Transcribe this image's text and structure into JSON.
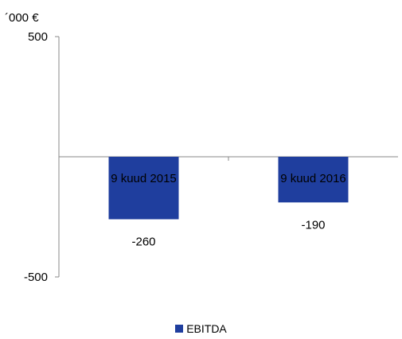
{
  "chart_data": {
    "type": "bar",
    "unit_label": "´000 €",
    "categories": [
      "9 kuud 2015",
      "9 kuud 2016"
    ],
    "series": [
      {
        "name": "EBITDA",
        "values": [
          -260,
          -190
        ],
        "color": "#1F3E9E"
      }
    ],
    "ylim": [
      -500,
      500
    ],
    "yticks": [
      500,
      -500
    ],
    "data_labels": [
      "-260",
      "-190"
    ],
    "legend_position": "bottom",
    "grid": false,
    "title": "",
    "xlabel": "",
    "ylabel": ""
  }
}
